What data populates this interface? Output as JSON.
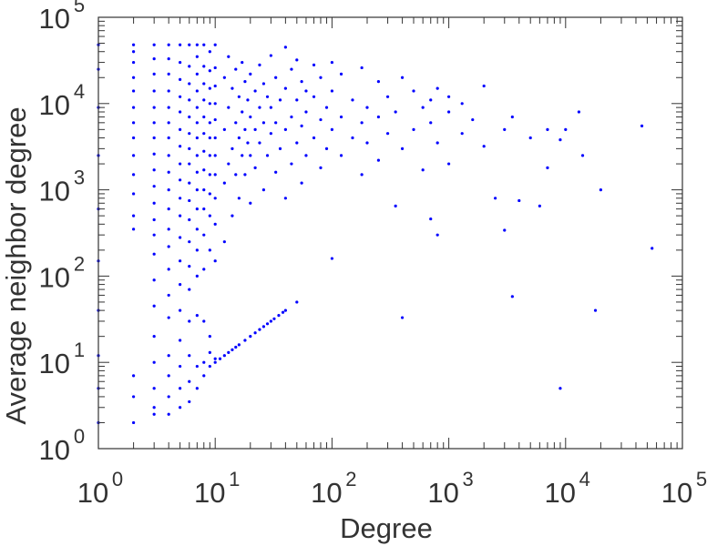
{
  "chart_data": {
    "type": "scatter",
    "title": "",
    "xlabel": "Degree",
    "ylabel": "Average neighbor degree",
    "xscale": "log",
    "yscale": "log",
    "xlim": [
      1,
      100000
    ],
    "ylim": [
      1,
      100000
    ],
    "x_ticks": [
      {
        "base": "10",
        "exp": "0"
      },
      {
        "base": "10",
        "exp": "1"
      },
      {
        "base": "10",
        "exp": "2"
      },
      {
        "base": "10",
        "exp": "3"
      },
      {
        "base": "10",
        "exp": "4"
      },
      {
        "base": "10",
        "exp": "5"
      }
    ],
    "y_ticks": [
      {
        "base": "10",
        "exp": "0"
      },
      {
        "base": "10",
        "exp": "1"
      },
      {
        "base": "10",
        "exp": "2"
      },
      {
        "base": "10",
        "exp": "3"
      },
      {
        "base": "10",
        "exp": "4"
      },
      {
        "base": "10",
        "exp": "5"
      }
    ],
    "grid": false,
    "legend": "none",
    "marker_color": "#0000ff",
    "series": [
      {
        "points": [
          [
            1,
            2
          ],
          [
            1,
            5
          ],
          [
            1,
            12
          ],
          [
            1,
            40
          ],
          [
            1,
            150
          ],
          [
            1,
            600
          ],
          [
            1,
            2500
          ],
          [
            1,
            9000
          ],
          [
            1,
            25000
          ],
          [
            1,
            48000
          ],
          [
            2,
            2
          ],
          [
            2,
            4
          ],
          [
            2,
            7
          ],
          [
            2,
            350
          ],
          [
            2,
            500
          ],
          [
            2,
            900
          ],
          [
            2,
            1500
          ],
          [
            2,
            2500
          ],
          [
            2,
            4000
          ],
          [
            2,
            6000
          ],
          [
            2,
            9000
          ],
          [
            2,
            14000
          ],
          [
            2,
            20000
          ],
          [
            2,
            30000
          ],
          [
            2,
            40000
          ],
          [
            2,
            48000
          ],
          [
            3,
            2.5
          ],
          [
            3,
            3
          ],
          [
            3,
            5
          ],
          [
            3,
            10
          ],
          [
            3,
            20
          ],
          [
            3,
            45
          ],
          [
            3,
            90
          ],
          [
            3,
            180
          ],
          [
            3,
            300
          ],
          [
            3,
            450
          ],
          [
            3,
            700
          ],
          [
            3,
            1100
          ],
          [
            3,
            1700
          ],
          [
            3,
            2600
          ],
          [
            3,
            4000
          ],
          [
            3,
            6000
          ],
          [
            3,
            9000
          ],
          [
            3,
            14000
          ],
          [
            3,
            22000
          ],
          [
            3,
            33000
          ],
          [
            3,
            48000
          ],
          [
            4,
            2.5
          ],
          [
            4,
            4
          ],
          [
            4,
            7
          ],
          [
            4,
            12
          ],
          [
            4,
            33
          ],
          [
            4,
            60
          ],
          [
            4,
            120
          ],
          [
            4,
            220
          ],
          [
            4,
            350
          ],
          [
            4,
            600
          ],
          [
            4,
            1000
          ],
          [
            4,
            1600
          ],
          [
            4,
            2500
          ],
          [
            4,
            4000
          ],
          [
            4,
            6000
          ],
          [
            4,
            9000
          ],
          [
            4,
            14000
          ],
          [
            4,
            22000
          ],
          [
            4,
            33000
          ],
          [
            4,
            48000
          ],
          [
            5,
            3
          ],
          [
            5,
            5
          ],
          [
            5,
            9
          ],
          [
            5,
            18
          ],
          [
            5,
            40
          ],
          [
            5,
            80
          ],
          [
            5,
            150
          ],
          [
            5,
            280
          ],
          [
            5,
            500
          ],
          [
            5,
            800
          ],
          [
            5,
            1300
          ],
          [
            5,
            2000
          ],
          [
            5,
            3200
          ],
          [
            5,
            5000
          ],
          [
            5,
            8000
          ],
          [
            5,
            12000
          ],
          [
            5,
            19000
          ],
          [
            5,
            30000
          ],
          [
            5,
            48000
          ],
          [
            6,
            3.5
          ],
          [
            6,
            6
          ],
          [
            6,
            12
          ],
          [
            6,
            30
          ],
          [
            6,
            70
          ],
          [
            6,
            130
          ],
          [
            6,
            250
          ],
          [
            6,
            450
          ],
          [
            6,
            750
          ],
          [
            6,
            1200
          ],
          [
            6,
            2000
          ],
          [
            6,
            3000
          ],
          [
            6,
            4500
          ],
          [
            6,
            7000
          ],
          [
            6,
            11000
          ],
          [
            6,
            17000
          ],
          [
            6,
            27000
          ],
          [
            6,
            48000
          ],
          [
            7,
            5
          ],
          [
            7,
            9
          ],
          [
            7,
            35
          ],
          [
            7,
            100
          ],
          [
            7,
            200
          ],
          [
            7,
            350
          ],
          [
            7,
            600
          ],
          [
            7,
            1000
          ],
          [
            7,
            1600
          ],
          [
            7,
            2500
          ],
          [
            7,
            4000
          ],
          [
            7,
            6000
          ],
          [
            7,
            9000
          ],
          [
            7,
            14000
          ],
          [
            7,
            22000
          ],
          [
            7,
            35000
          ],
          [
            7,
            48000
          ],
          [
            8,
            7
          ],
          [
            8,
            10
          ],
          [
            8,
            30
          ],
          [
            8,
            120
          ],
          [
            8,
            300
          ],
          [
            8,
            600
          ],
          [
            8,
            1000
          ],
          [
            8,
            1700
          ],
          [
            8,
            2800
          ],
          [
            8,
            4500
          ],
          [
            8,
            7000
          ],
          [
            8,
            11000
          ],
          [
            8,
            17000
          ],
          [
            8,
            27000
          ],
          [
            8,
            48000
          ],
          [
            9,
            9
          ],
          [
            9,
            13
          ],
          [
            9,
            20
          ],
          [
            9,
            200
          ],
          [
            9,
            500
          ],
          [
            9,
            900
          ],
          [
            9,
            1500
          ],
          [
            9,
            2500
          ],
          [
            9,
            4000
          ],
          [
            9,
            6000
          ],
          [
            9,
            10000
          ],
          [
            9,
            15000
          ],
          [
            9,
            24000
          ],
          [
            9,
            40000
          ],
          [
            10,
            10
          ],
          [
            10,
            11
          ],
          [
            10,
            150
          ],
          [
            10,
            400
          ],
          [
            10,
            800
          ],
          [
            10,
            1500
          ],
          [
            10,
            2500
          ],
          [
            10,
            4000
          ],
          [
            10,
            6500
          ],
          [
            10,
            10000
          ],
          [
            10,
            16000
          ],
          [
            10,
            26000
          ],
          [
            10,
            48000
          ],
          [
            11,
            11
          ],
          [
            12,
            12
          ],
          [
            13,
            13
          ],
          [
            14,
            14
          ],
          [
            15,
            15
          ],
          [
            16,
            16
          ],
          [
            18,
            18
          ],
          [
            20,
            20
          ],
          [
            22,
            22
          ],
          [
            24,
            24
          ],
          [
            26,
            26
          ],
          [
            28,
            28
          ],
          [
            30,
            30
          ],
          [
            32,
            32
          ],
          [
            35,
            35
          ],
          [
            38,
            38
          ],
          [
            40,
            40
          ],
          [
            12,
            250
          ],
          [
            12,
            1200
          ],
          [
            12,
            5000
          ],
          [
            12,
            20000
          ],
          [
            13,
            2000
          ],
          [
            13,
            9000
          ],
          [
            13,
            35000
          ],
          [
            14,
            500
          ],
          [
            14,
            3000
          ],
          [
            14,
            15000
          ],
          [
            15,
            1500
          ],
          [
            15,
            6000
          ],
          [
            15,
            25000
          ],
          [
            16,
            800
          ],
          [
            16,
            4000
          ],
          [
            16,
            12000
          ],
          [
            17,
            2500
          ],
          [
            17,
            8000
          ],
          [
            17,
            30000
          ],
          [
            18,
            1500
          ],
          [
            18,
            5000
          ],
          [
            18,
            18000
          ],
          [
            19,
            3500
          ],
          [
            19,
            11000
          ],
          [
            20,
            700
          ],
          [
            20,
            2500
          ],
          [
            20,
            7000
          ],
          [
            20,
            22000
          ],
          [
            22,
            1800
          ],
          [
            22,
            5000
          ],
          [
            22,
            14000
          ],
          [
            24,
            3500
          ],
          [
            24,
            9000
          ],
          [
            24,
            28000
          ],
          [
            26,
            1000
          ],
          [
            26,
            6000
          ],
          [
            26,
            17000
          ],
          [
            28,
            2500
          ],
          [
            28,
            12000
          ],
          [
            30,
            4500
          ],
          [
            30,
            9000
          ],
          [
            30,
            36000
          ],
          [
            33,
            1600
          ],
          [
            33,
            6000
          ],
          [
            33,
            20000
          ],
          [
            36,
            3000
          ],
          [
            36,
            11000
          ],
          [
            40,
            800
          ],
          [
            40,
            5000
          ],
          [
            40,
            15000
          ],
          [
            40,
            45000
          ],
          [
            45,
            2000
          ],
          [
            45,
            7000
          ],
          [
            45,
            25000
          ],
          [
            50,
            50
          ],
          [
            50,
            3500
          ],
          [
            50,
            11000
          ],
          [
            50,
            32000
          ],
          [
            55,
            1200
          ],
          [
            55,
            5500
          ],
          [
            55,
            18000
          ],
          [
            60,
            2500
          ],
          [
            60,
            8000
          ],
          [
            60,
            14000
          ],
          [
            70,
            4000
          ],
          [
            70,
            12000
          ],
          [
            70,
            28000
          ],
          [
            80,
            1800
          ],
          [
            80,
            6500
          ],
          [
            80,
            20000
          ],
          [
            90,
            3000
          ],
          [
            90,
            9000
          ],
          [
            100,
            160
          ],
          [
            100,
            5000
          ],
          [
            100,
            14000
          ],
          [
            100,
            30000
          ],
          [
            120,
            2500
          ],
          [
            120,
            7000
          ],
          [
            120,
            22000
          ],
          [
            150,
            4000
          ],
          [
            150,
            11000
          ],
          [
            180,
            1500
          ],
          [
            180,
            6000
          ],
          [
            180,
            26000
          ],
          [
            200,
            3500
          ],
          [
            200,
            9000
          ],
          [
            250,
            2200
          ],
          [
            250,
            7000
          ],
          [
            250,
            18000
          ],
          [
            300,
            4500
          ],
          [
            300,
            12000
          ],
          [
            350,
            650
          ],
          [
            350,
            8000
          ],
          [
            400,
            33
          ],
          [
            400,
            3000
          ],
          [
            400,
            20000
          ],
          [
            500,
            5000
          ],
          [
            500,
            14000
          ],
          [
            600,
            1700
          ],
          [
            600,
            9000
          ],
          [
            700,
            460
          ],
          [
            700,
            6000
          ],
          [
            700,
            11000
          ],
          [
            800,
            300
          ],
          [
            800,
            3500
          ],
          [
            800,
            15000
          ],
          [
            1000,
            2000
          ],
          [
            1000,
            8000
          ],
          [
            1000,
            12000
          ],
          [
            1300,
            4500
          ],
          [
            1300,
            10000
          ],
          [
            1600,
            6500
          ],
          [
            2000,
            3200
          ],
          [
            2000,
            16000
          ],
          [
            2500,
            800
          ],
          [
            3000,
            340
          ],
          [
            3000,
            5000
          ],
          [
            3500,
            58
          ],
          [
            3500,
            7000
          ],
          [
            4000,
            750
          ],
          [
            5000,
            4000
          ],
          [
            6000,
            650
          ],
          [
            7000,
            1800
          ],
          [
            7000,
            5000
          ],
          [
            9000,
            5
          ],
          [
            9000,
            3800
          ],
          [
            10000,
            5000
          ],
          [
            13000,
            8000
          ],
          [
            14000,
            2500
          ],
          [
            18000,
            40
          ],
          [
            20000,
            1000
          ],
          [
            45000,
            5500
          ],
          [
            55000,
            210
          ]
        ]
      }
    ]
  }
}
